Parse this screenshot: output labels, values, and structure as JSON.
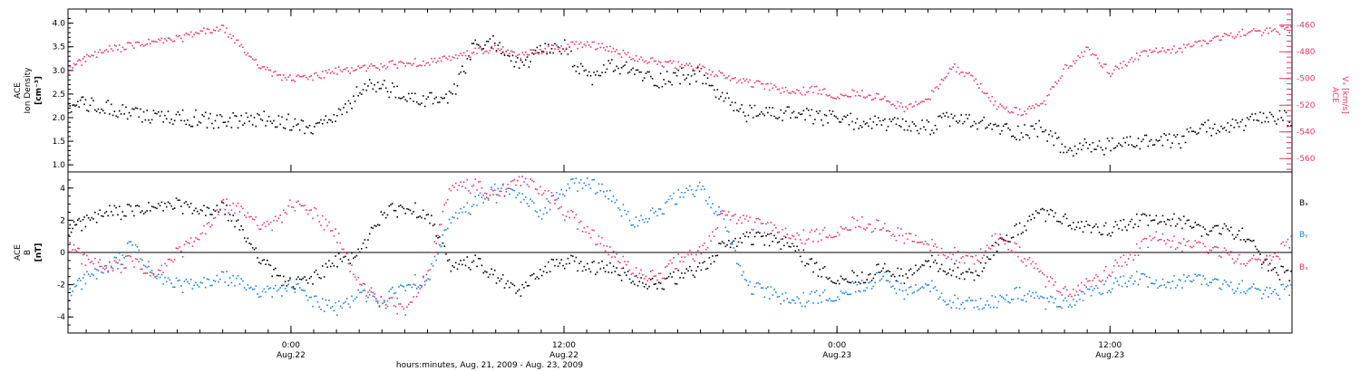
{
  "colors": {
    "black": "#000000",
    "blue": "#1a7fd6",
    "red": "#e8366a"
  },
  "footer_label": "hours:minutes, Aug. 21, 2009 - Aug. 23, 2009",
  "x_ticks": [
    {
      "time": "0:00",
      "date": "Aug.22"
    },
    {
      "time": "12:00",
      "date": "Aug.22"
    },
    {
      "time": "0:00",
      "date": "Aug.23"
    },
    {
      "time": "12:00",
      "date": "Aug.23"
    }
  ],
  "top_panel": {
    "left_label": {
      "l1": "ACE",
      "l2": "Ion Density",
      "l3": "[cm⁻³]"
    },
    "right_label": {
      "l1": "ACE",
      "l2": "Vₓ [km/s]"
    },
    "left_ticks": [
      "1.0",
      "1.5",
      "2.0",
      "2.5",
      "3.0",
      "3.5",
      "4.0"
    ],
    "right_ticks": [
      "-460",
      "-480",
      "-500",
      "-520",
      "-540",
      "-560"
    ]
  },
  "bottom_panel": {
    "left_label": {
      "l1": "ACE",
      "l2": "B",
      "l3": "[nT]"
    },
    "ticks": [
      "4",
      "2",
      "0",
      "-2",
      "-4"
    ],
    "legend": [
      "Bₓ",
      "Bᵧ",
      "Bₓ"
    ]
  },
  "chart_data": [
    {
      "type": "scatter",
      "x_unit": "hours since 2009-08-21 00:00 UT",
      "xlim": [
        14.2,
        68.0
      ],
      "series": [
        {
          "name": "Ion Density",
          "axis": "left",
          "ylim": [
            0.85,
            4.3
          ],
          "x": [
            14.2,
            15.0,
            16.0,
            17.0,
            18.0,
            19.0,
            20.0,
            21.0,
            22.0,
            23.0,
            24.0,
            25.0,
            26.0,
            27.0,
            28.0,
            29.0,
            30.0,
            31.0,
            32.0,
            33.0,
            34.0,
            35.0,
            36.0,
            37.0,
            38.0,
            39.0,
            40.0,
            41.0,
            42.0,
            43.0,
            44.0,
            45.0,
            46.0,
            47.0,
            48.0,
            49.0,
            50.0,
            51.0,
            52.0,
            53.0,
            54.0,
            55.0,
            56.0,
            57.0,
            58.0,
            59.0,
            60.0,
            61.0,
            62.0,
            63.0,
            64.0,
            65.0,
            66.0,
            67.0,
            68.0
          ],
          "y": [
            2.3,
            2.3,
            2.2,
            2.1,
            2.0,
            2.0,
            2.0,
            1.9,
            2.0,
            2.0,
            1.9,
            1.8,
            2.0,
            2.6,
            2.7,
            2.4,
            2.4,
            2.4,
            3.5,
            3.6,
            3.1,
            3.4,
            3.5,
            2.8,
            3.1,
            3.0,
            2.8,
            2.9,
            2.9,
            2.4,
            2.1,
            2.1,
            2.1,
            2.0,
            2.0,
            1.9,
            1.9,
            1.8,
            1.8,
            2.0,
            1.9,
            1.8,
            1.7,
            1.8,
            1.3,
            1.4,
            1.4,
            1.5,
            1.5,
            1.5,
            1.8,
            1.8,
            1.9,
            2.0,
            2.0
          ]
        },
        {
          "name": "Vₓ",
          "axis": "right",
          "ylim": [
            -570,
            -448
          ],
          "x": [
            14.2,
            15.0,
            16.0,
            17.0,
            18.0,
            19.0,
            20.0,
            21.0,
            22.0,
            23.0,
            24.0,
            25.0,
            26.0,
            27.0,
            28.0,
            29.0,
            30.0,
            31.0,
            32.0,
            33.0,
            34.0,
            35.0,
            36.0,
            37.0,
            38.0,
            39.0,
            40.0,
            41.0,
            42.0,
            43.0,
            44.0,
            45.0,
            46.0,
            47.0,
            48.0,
            49.0,
            50.0,
            51.0,
            52.0,
            53.0,
            54.0,
            55.0,
            56.0,
            57.0,
            58.0,
            59.0,
            60.0,
            61.0,
            62.0,
            63.0,
            64.0,
            65.0,
            66.0,
            67.0,
            68.0
          ],
          "y": [
            -493,
            -484,
            -478,
            -475,
            -472,
            -470,
            -465,
            -462,
            -480,
            -495,
            -500,
            -498,
            -494,
            -492,
            -490,
            -488,
            -487,
            -485,
            -480,
            -477,
            -483,
            -478,
            -476,
            -473,
            -478,
            -483,
            -487,
            -490,
            -492,
            -498,
            -502,
            -506,
            -510,
            -508,
            -512,
            -510,
            -515,
            -522,
            -515,
            -490,
            -500,
            -520,
            -525,
            -520,
            -492,
            -478,
            -495,
            -484,
            -479,
            -478,
            -472,
            -468,
            -465,
            -464,
            -463
          ]
        }
      ]
    },
    {
      "type": "scatter",
      "x_unit": "hours since 2009-08-21 00:00 UT",
      "xlim": [
        14.2,
        68.0
      ],
      "ylim": [
        -5,
        5
      ],
      "series": [
        {
          "name": "Bₓ",
          "x": [
            14.2,
            15.0,
            16.0,
            17.0,
            18.0,
            19.0,
            20.0,
            21.0,
            22.0,
            23.0,
            24.0,
            25.0,
            26.0,
            27.0,
            28.0,
            29.0,
            30.0,
            31.0,
            32.0,
            33.0,
            34.0,
            35.0,
            36.0,
            37.0,
            38.0,
            39.0,
            40.0,
            41.0,
            42.0,
            43.0,
            44.0,
            45.0,
            46.0,
            47.0,
            48.0,
            49.0,
            50.0,
            51.0,
            52.0,
            53.0,
            54.0,
            55.0,
            56.0,
            57.0,
            58.0,
            59.0,
            60.0,
            61.0,
            62.0,
            63.0,
            64.0,
            65.0,
            66.0,
            67.0,
            68.0
          ],
          "y": [
            1.5,
            2.0,
            2.5,
            2.6,
            2.8,
            3.0,
            2.5,
            2.8,
            1.0,
            -1.0,
            -2.0,
            -1.5,
            -0.5,
            0.0,
            2.5,
            2.8,
            2.5,
            -1.0,
            -0.5,
            -1.5,
            -2.5,
            -1.0,
            -0.5,
            -0.8,
            -1.0,
            -1.5,
            -2.0,
            -1.5,
            -1.0,
            0.5,
            1.0,
            0.8,
            0.5,
            -1.0,
            -1.5,
            -1.5,
            -1.0,
            -1.5,
            -0.5,
            -1.0,
            -1.5,
            0.5,
            1.5,
            2.5,
            2.0,
            1.5,
            1.5,
            2.0,
            2.0,
            2.0,
            1.5,
            1.5,
            1.0,
            -1.0,
            -1.5
          ]
        },
        {
          "name": "Bᵧ",
          "x": [
            14.2,
            15.0,
            16.0,
            17.0,
            18.0,
            19.0,
            20.0,
            21.0,
            22.0,
            23.0,
            24.0,
            25.0,
            26.0,
            27.0,
            28.0,
            29.0,
            30.0,
            31.0,
            32.0,
            33.0,
            34.0,
            35.0,
            36.0,
            37.0,
            38.0,
            39.0,
            40.0,
            41.0,
            42.0,
            43.0,
            44.0,
            45.0,
            46.0,
            47.0,
            48.0,
            49.0,
            50.0,
            51.0,
            52.0,
            53.0,
            54.0,
            55.0,
            56.0,
            57.0,
            58.0,
            59.0,
            60.0,
            61.0,
            62.0,
            63.0,
            64.0,
            65.0,
            66.0,
            67.0,
            68.0
          ],
          "y": [
            -2.5,
            -1.5,
            -1.0,
            0.5,
            -1.5,
            -2.0,
            -2.0,
            -1.5,
            -2.0,
            -2.5,
            -2.0,
            -3.0,
            -3.5,
            -2.5,
            -3.0,
            -2.0,
            -1.5,
            2.0,
            3.0,
            4.0,
            3.5,
            2.5,
            4.0,
            4.5,
            3.5,
            2.0,
            2.5,
            3.5,
            4.0,
            2.0,
            -2.0,
            -2.5,
            -3.0,
            -2.8,
            -2.5,
            -2.0,
            -1.5,
            -2.5,
            -2.0,
            -3.0,
            -3.2,
            -3.0,
            -2.5,
            -3.0,
            -3.2,
            -2.5,
            -2.0,
            -1.5,
            -2.0,
            -1.8,
            -1.5,
            -2.0,
            -2.2,
            -2.5,
            -2.3
          ]
        },
        {
          "name": "Bₓ",
          "x": [
            14.2,
            15.0,
            16.0,
            17.0,
            18.0,
            19.0,
            20.0,
            21.0,
            22.0,
            23.0,
            24.0,
            25.0,
            26.0,
            27.0,
            28.0,
            29.0,
            30.0,
            31.0,
            32.0,
            33.0,
            34.0,
            35.0,
            36.0,
            37.0,
            38.0,
            39.0,
            40.0,
            41.0,
            42.0,
            43.0,
            44.0,
            45.0,
            46.0,
            47.0,
            48.0,
            49.0,
            50.0,
            51.0,
            52.0,
            53.0,
            54.0,
            55.0,
            56.0,
            57.0,
            58.0,
            59.0,
            60.0,
            61.0,
            62.0,
            63.0,
            64.0,
            65.0,
            66.0,
            67.0,
            68.0
          ],
          "y": [
            0.5,
            -0.5,
            -1.0,
            -0.5,
            -1.5,
            0.0,
            1.0,
            3.0,
            2.5,
            1.5,
            3.0,
            2.5,
            1.0,
            -2.0,
            -3.0,
            -3.5,
            -1.0,
            4.0,
            4.2,
            3.5,
            4.5,
            4.0,
            2.5,
            1.5,
            0.0,
            -1.0,
            -1.5,
            -0.5,
            0.0,
            2.5,
            2.0,
            1.5,
            1.0,
            1.0,
            1.5,
            2.0,
            1.5,
            1.0,
            0.5,
            0.0,
            -0.5,
            1.0,
            0.0,
            -1.5,
            -2.5,
            -2.0,
            -1.0,
            0.0,
            1.0,
            0.5,
            0.5,
            0.0,
            -0.5,
            -0.5,
            0.8
          ]
        }
      ]
    }
  ]
}
